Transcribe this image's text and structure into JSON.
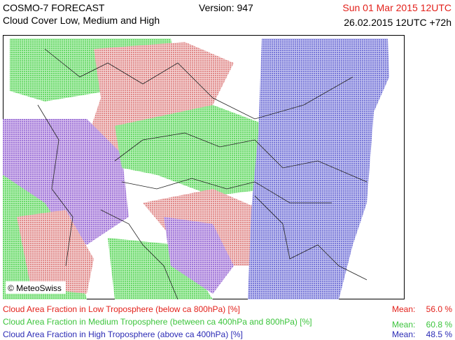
{
  "header": {
    "title": "COSMO-7 FORECAST",
    "subtitle": "Cloud Cover Low, Medium and High",
    "version": "Version: 947",
    "valid_time": "Sun 01 Mar 2015 12UTC",
    "run_time": "26.02.2015 12UTC +72h"
  },
  "map": {
    "credit": "© MeteoSwiss"
  },
  "legend": [
    {
      "label": "Cloud Area Fraction in Low Troposphere (below ca 800hPa) [%]",
      "mean_label": "Mean:",
      "mean": "56.0 %"
    },
    {
      "label": "Cloud Area Fraction in Medium Troposphere (between ca 400hPa and 800hPa) [%]",
      "mean_label": "Mean:",
      "mean": "60.8 %"
    },
    {
      "label": "Cloud Area Fraction in High Troposphere (above ca 400hPa) [%]",
      "mean_label": "Mean:",
      "mean": "48.5 %"
    }
  ]
}
